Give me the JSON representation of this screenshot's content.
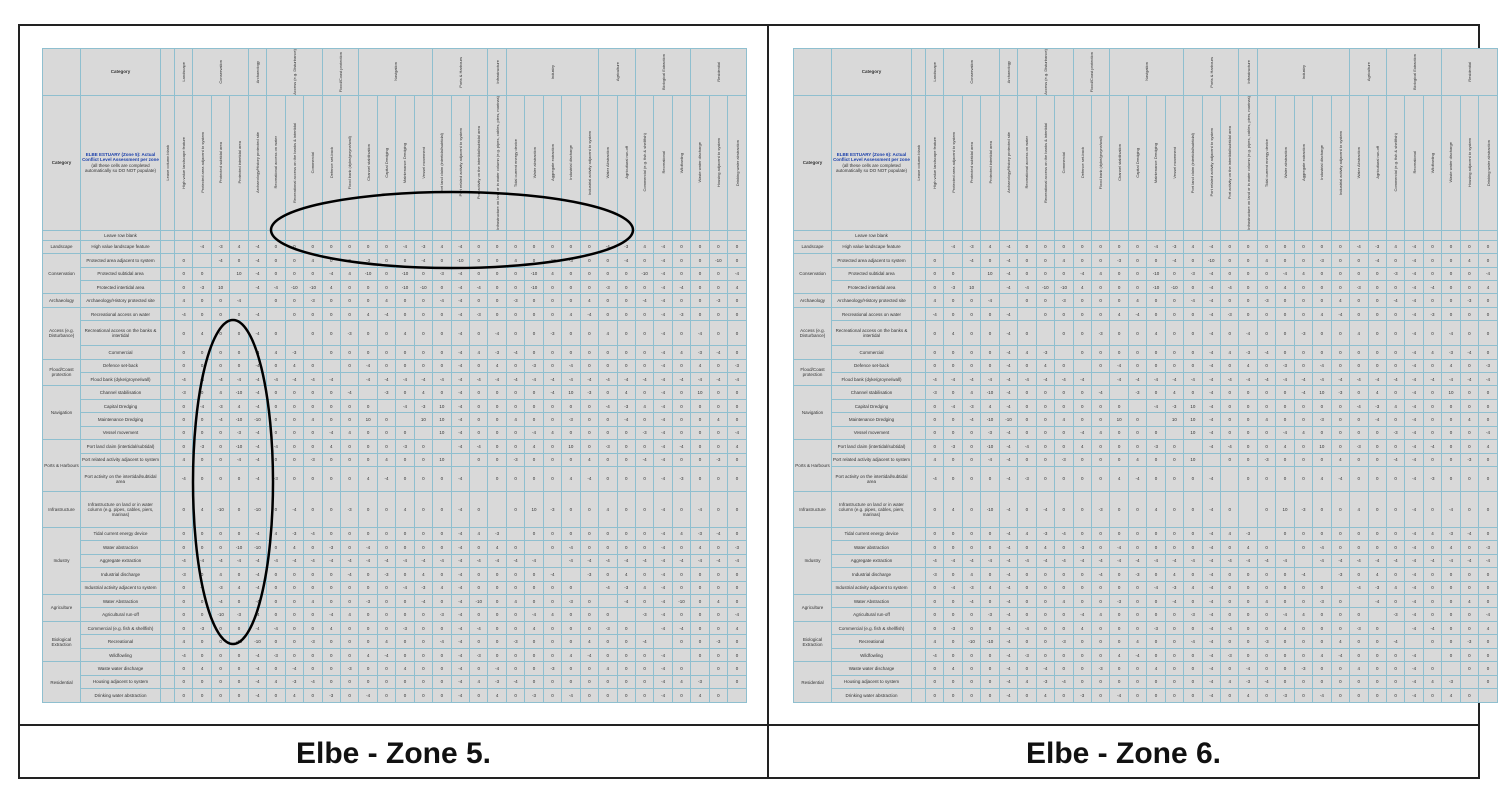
{
  "captions": {
    "left": "Elbe - Zone 5.",
    "right": "Elbe - Zone 6."
  },
  "matrix": {
    "category_header": "Category",
    "leave_blank_row": "Leave row blank",
    "leave_blank_col": "Leave column blank",
    "legend": {
      "zone5": "ELBE ESTUARY (Zone 5): Actual Conflict Level Assessment per zone",
      "zone6": "ELBE ESTUARY (Zone 6): Actual Conflict Level Assessment per zone",
      "note": "(all these cells are completed automatically so DO NOT populate)"
    },
    "groups": [
      {
        "name": "Landscape",
        "items": [
          "High value landscape feature"
        ]
      },
      {
        "name": "Conservation",
        "items": [
          "Protected area adjacent to system",
          "Protected subtidal area",
          "Protected intertidal area"
        ]
      },
      {
        "name": "Archaeology",
        "items": [
          "Archaeology/History protected site"
        ]
      },
      {
        "name": "Access (e.g. Disturbance)",
        "items": [
          "Recreational access on water",
          "Recreational access on the banks & intertidal",
          "Commercial"
        ]
      },
      {
        "name": "Flood/Coast protection",
        "items": [
          "Defence set-back",
          "Flood bank (dyke/groyne/wall)"
        ]
      },
      {
        "name": "Navigation",
        "items": [
          "Channel stabilisation",
          "Capital Dredging",
          "Maintenance Dredging",
          "Vessel movement"
        ]
      },
      {
        "name": "Ports & Harbours",
        "items": [
          "Port land claim (intertidal/subtidal)",
          "Port related activity adjacent to system",
          "Port activity on the intertidal/subtidal area"
        ]
      },
      {
        "name": "Infrastructure",
        "items": [
          "Infrastructure on land or in water column (e.g. pipes, cables, piers, marinas)"
        ]
      },
      {
        "name": "Industry",
        "items": [
          "Tidal current energy device",
          "Water abstraction",
          "Aggregate extraction",
          "Industrial discharge",
          "Industrial activity adjacent to system"
        ]
      },
      {
        "name": "Agriculture",
        "items": [
          "Water Abstraction",
          "Agricultural run-off"
        ]
      },
      {
        "name": "Biological Extraction",
        "items": [
          "Commercial (e.g. fish & shellfish)",
          "Recreational",
          "Wildfowling"
        ]
      },
      {
        "name": "Residential",
        "items": [
          "Waste water discharge",
          "Housing adjacent to system",
          "Drinking water abstraction"
        ]
      }
    ],
    "colors": {
      "red": "#e00000",
      "purple": "#7a3fb0",
      "green": "#1e8c1e"
    }
  }
}
